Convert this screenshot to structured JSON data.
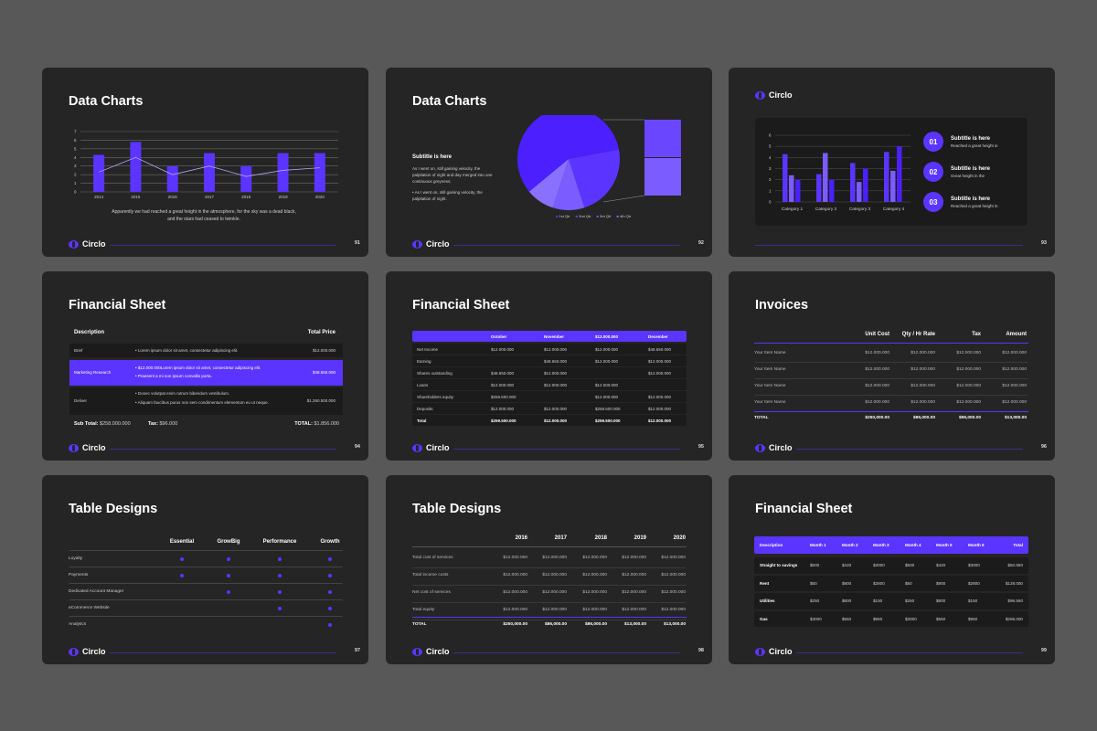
{
  "brand": {
    "logo_text": "Circlo",
    "accent": "#5b34ff"
  },
  "slides": [
    {
      "title": "Data Charts",
      "page": "91",
      "caption": "Apparently we had reached a great height in the atmosphere, for the sky was a dead black, and the stars had ceased to twinkle."
    },
    {
      "title": "Data Charts",
      "page": "92",
      "subtitle": "Subtitle is here",
      "body": "As I went on, still gaining velocity, the palpitation of night and day merged into one continuous greyness;",
      "bullet": "As I went on, still gaining velocity, the palpitation of night.",
      "legend": [
        "1st Qtr",
        "2nd Qtr",
        "3rd Qtr",
        "4th Qtr"
      ]
    },
    {
      "page": "93",
      "items": [
        {
          "num": "01",
          "title": "Subtitle is here",
          "desc": "Reached a great height in"
        },
        {
          "num": "02",
          "title": "Subtitle is here",
          "desc": "Great height in the"
        },
        {
          "num": "03",
          "title": "Subtitle is here",
          "desc": "Reached a great height in"
        }
      ]
    },
    {
      "title": "Financial Sheet",
      "page": "94",
      "col_desc": "Description",
      "col_price": "Total Price",
      "rows": [
        {
          "name": "Brief",
          "lines": [
            "Lorem ipsum dolor sit amet, consectetur adipiscing elit."
          ],
          "price": "$12.000.000"
        },
        {
          "name": "Marketing Research",
          "lines": [
            "$12.000.000Lorem ipsum dolor sit amet, consectetur adipiscing elit.",
            "Praesent a mi non ipsum convallis porta."
          ],
          "price": "$48.650.000"
        },
        {
          "name": "Deliver",
          "lines": [
            "Donec volutpat enim rutrum bibendum vestibulum.",
            "Aliquam faucibus purus non sem condimentum elementum eu ut neque."
          ],
          "price": "$1.260.500.000"
        }
      ],
      "subtotal_label": "Sub Total:",
      "subtotal": "$258.000.000",
      "tax_label": "Tax:",
      "tax": "$96.000",
      "total_label": "TOTAL:",
      "total": "$1.856.000"
    },
    {
      "title": "Financial Sheet",
      "page": "95",
      "headers": [
        "",
        "October",
        "November",
        "$12.000.000",
        "December"
      ],
      "rows": [
        [
          "Net Income",
          "$12.000.000",
          "$12.000.000",
          "$12.000.000",
          "$48.650.000"
        ],
        [
          "Earning",
          "",
          "$48.650.000",
          "$12.000.000",
          "$12.000.000"
        ],
        [
          "Shares outstanding",
          "$48.650.000",
          "$12.000.000",
          "",
          "$12.000.000"
        ],
        [
          "Loans",
          "$12.000.000",
          "$12.000.000",
          "$12.000.000",
          ""
        ],
        [
          "Shareholders equity",
          "$259.500.000",
          "",
          "$12.000.000",
          "$12.000.000"
        ],
        [
          "Deposits",
          "$12.000.000",
          "$12.000.000",
          "$259.500.000",
          "$12.000.000"
        ],
        [
          "Total",
          "$259.500.000",
          "$12.000.000",
          "$259.500.000",
          "$12.000.000"
        ]
      ]
    },
    {
      "title": "Invoices",
      "page": "96",
      "headers": [
        "",
        "Unit Cost",
        "Qty / Hr Rate",
        "Tax",
        "Amount"
      ],
      "rows": [
        [
          "Your Item Name",
          "$12.000.000",
          "$12.000.000",
          "$12.000.000",
          "$12.000.000"
        ],
        [
          "Your Item Name",
          "$12.000.000",
          "$12.000.000",
          "$12.000.000",
          "$12.000.000"
        ],
        [
          "Your Item Name",
          "$12.000.000",
          "$12.000.000",
          "$12.000.000",
          "$12.000.000"
        ],
        [
          "Your Item Name",
          "$12.000.000",
          "$12.000.000",
          "$12.000.000",
          "$12.000.000"
        ]
      ],
      "total": [
        "TOTAL",
        "$250,000.00",
        "$86,000.00",
        "$96,000.00",
        "$13,000.00"
      ]
    },
    {
      "title": "Table Designs",
      "page": "97",
      "headers": [
        "Essential",
        "GrowBig",
        "Performance",
        "Growth"
      ],
      "rows": [
        {
          "name": "Loyalty",
          "marks": [
            1,
            1,
            1,
            1
          ]
        },
        {
          "name": "Payments",
          "marks": [
            1,
            1,
            1,
            1
          ]
        },
        {
          "name": "Dedicated Account Manager",
          "marks": [
            0,
            1,
            1,
            1
          ]
        },
        {
          "name": "eCommerce Website",
          "marks": [
            0,
            0,
            1,
            1
          ]
        },
        {
          "name": "Analytics",
          "marks": [
            0,
            0,
            0,
            1
          ]
        }
      ]
    },
    {
      "title": "Table Designs",
      "page": "98",
      "headers": [
        "",
        "2016",
        "2017",
        "2018",
        "2019",
        "2020"
      ],
      "rows": [
        [
          "Total cost of services",
          "$12.000.000",
          "$12.000.000",
          "$12.000.000",
          "$12.000.000",
          "$12.000.000"
        ],
        [
          "Total income costs",
          "$12.000.000",
          "$12.000.000",
          "$12.000.000",
          "$12.000.000",
          "$12.000.000"
        ],
        [
          "Net cost of services",
          "$12.000.000",
          "$12.000.000",
          "$12.000.000",
          "$12.000.000",
          "$12.000.000"
        ],
        [
          "Total equity",
          "$12.000.000",
          "$12.000.000",
          "$12.000.000",
          "$12.000.000",
          "$12.000.000"
        ]
      ],
      "total": [
        "TOTAL",
        "$250,000.00",
        "$86,000.00",
        "$86,000.00",
        "$13,000.00",
        "$13,000.00"
      ]
    },
    {
      "title": "Financial Sheet",
      "page": "99",
      "headers": [
        "Description",
        "Month 1",
        "Month 2",
        "Month 3",
        "Month 4",
        "Month 5",
        "Month 6",
        "Total"
      ],
      "rows": [
        [
          "Straight to savings",
          "$500",
          "$420",
          "$3000",
          "$500",
          "$420",
          "$3000",
          "$50.550"
        ],
        [
          "Rent",
          "$50",
          "$900",
          "$2800",
          "$50",
          "$900",
          "$2800",
          "$128.000"
        ],
        [
          "Utilities",
          "$250",
          "$800",
          "$150",
          "$250",
          "$800",
          "$150",
          "$96.560"
        ],
        [
          "Gas",
          "$3000",
          "$550",
          "$960",
          "$3000",
          "$550",
          "$960",
          "$256.000"
        ]
      ]
    }
  ],
  "chart_data": [
    {
      "type": "bar",
      "title": "",
      "categories": [
        "2014",
        "2015",
        "2016",
        "2017",
        "2018",
        "2019",
        "2020"
      ],
      "series": [
        {
          "values": [
            4.3,
            5.8,
            3,
            4.5,
            3,
            4.5,
            4.5
          ]
        },
        {
          "values": [
            2.3,
            4,
            2,
            3,
            1.8,
            2.5,
            2.8
          ]
        }
      ],
      "ylim": [
        0,
        7
      ],
      "yticks": [
        0,
        1,
        2,
        3,
        4,
        5,
        6,
        7
      ]
    },
    {
      "type": "pie",
      "categories": [
        "1st Qtr",
        "2nd Qtr",
        "3rd Qtr",
        "4th Qtr"
      ],
      "values": [
        58,
        23,
        10,
        9
      ]
    },
    {
      "type": "bar",
      "categories": [
        "Category 1",
        "Category 2",
        "Category 3",
        "Category 4"
      ],
      "series": [
        {
          "values": [
            4.3,
            2.5,
            3.5,
            4.5
          ]
        },
        {
          "values": [
            2.4,
            4.4,
            1.8,
            2.8
          ]
        },
        {
          "values": [
            2,
            2,
            3,
            5
          ]
        }
      ],
      "ylim": [
        0,
        6
      ],
      "yticks": [
        0,
        1,
        2,
        3,
        4,
        5,
        6
      ]
    }
  ]
}
